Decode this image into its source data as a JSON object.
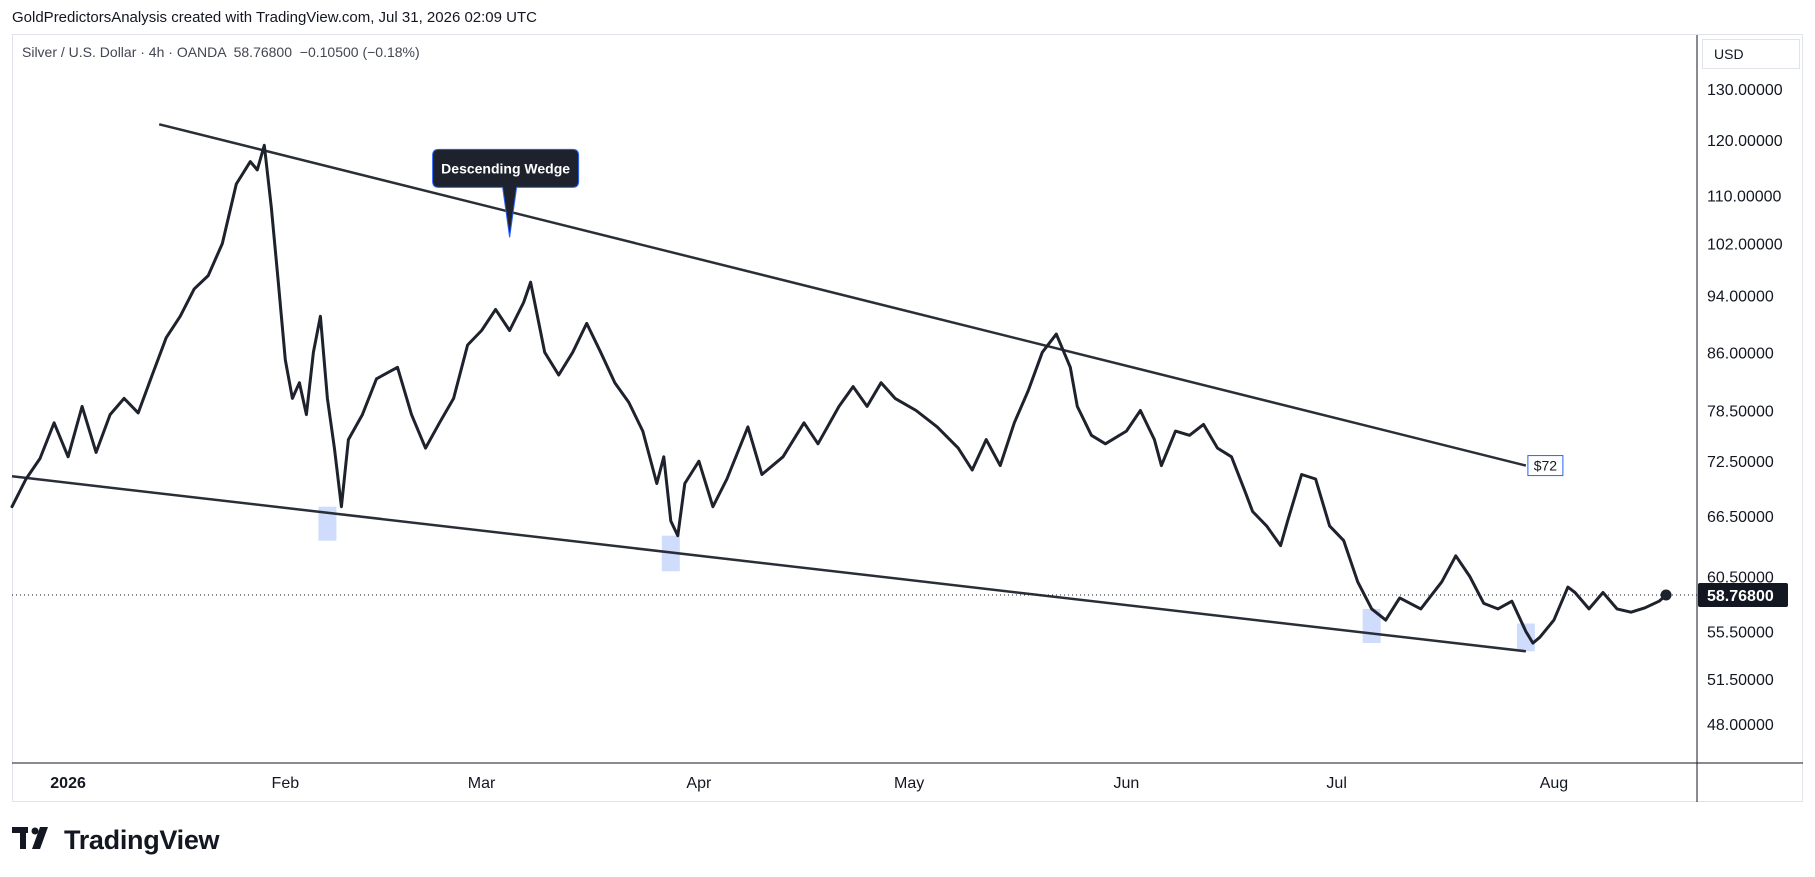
{
  "header": {
    "attribution": "GoldPredictorsAnalysis created with TradingView.com, Jul 31, 2026 02:09 UTC"
  },
  "legend": {
    "symbol": "Silver / U.S. Dollar · 4h · OANDA",
    "last": "58.76800",
    "change": "−0.10500 (−0.18%)"
  },
  "currency_button": "USD",
  "brand": {
    "name": "TradingView",
    "logo": "tradingview-logo-icon"
  },
  "colors": {
    "line": "#1e222d",
    "wedge": "#2a2e39",
    "highlight": "#cfdcfb",
    "callout_bg": "#1e222d",
    "callout_border": "#2962ff",
    "price_tag_bg": "#131722",
    "target_border": "#2962ff"
  },
  "chart_data": {
    "type": "line",
    "title": "Silver / U.S. Dollar · 4h · OANDA",
    "y_scale": "log",
    "ylim": [
      42,
      138
    ],
    "y_ticks": [
      {
        "value": 130,
        "label": "130.00000"
      },
      {
        "value": 120,
        "label": "120.00000"
      },
      {
        "value": 110,
        "label": "110.00000"
      },
      {
        "value": 102,
        "label": "102.00000"
      },
      {
        "value": 94,
        "label": "94.00000"
      },
      {
        "value": 86,
        "label": "86.00000"
      },
      {
        "value": 78.5,
        "label": "78.50000"
      },
      {
        "value": 72.5,
        "label": "72.50000"
      },
      {
        "value": 66.5,
        "label": "66.50000"
      },
      {
        "value": 60.5,
        "label": "60.50000"
      },
      {
        "value": 55.5,
        "label": "55.50000"
      },
      {
        "value": 51.5,
        "label": "51.50000"
      },
      {
        "value": 48,
        "label": "48.00000"
      }
    ],
    "x_range": [
      "2025-12-24",
      "2026-08-09"
    ],
    "x_ticks": [
      {
        "date": "2026-01-01",
        "label": "2026",
        "bold": true
      },
      {
        "date": "2026-02-01",
        "label": "Feb"
      },
      {
        "date": "2026-03-01",
        "label": "Mar"
      },
      {
        "date": "2026-04-01",
        "label": "Apr"
      },
      {
        "date": "2026-05-01",
        "label": "May"
      },
      {
        "date": "2026-06-01",
        "label": "Jun"
      },
      {
        "date": "2026-07-01",
        "label": "Jul"
      },
      {
        "date": "2026-08-01",
        "label": "Aug"
      }
    ],
    "current_price": {
      "value": 58.768,
      "label": "58.76800"
    },
    "series": [
      {
        "points": [
          [
            "2025-12-24",
            67.5
          ],
          [
            "2025-12-26",
            70.5
          ],
          [
            "2025-12-28",
            72.8
          ],
          [
            "2025-12-30",
            77.0
          ],
          [
            "2026-01-01",
            73.0
          ],
          [
            "2026-01-03",
            79.0
          ],
          [
            "2026-01-05",
            73.5
          ],
          [
            "2026-01-07",
            78.0
          ],
          [
            "2026-01-09",
            80.0
          ],
          [
            "2026-01-11",
            78.2
          ],
          [
            "2026-01-13",
            83.0
          ],
          [
            "2026-01-15",
            88.0
          ],
          [
            "2026-01-17",
            91.0
          ],
          [
            "2026-01-19",
            95.0
          ],
          [
            "2026-01-21",
            97.0
          ],
          [
            "2026-01-23",
            102.0
          ],
          [
            "2026-01-25",
            112.0
          ],
          [
            "2026-01-27",
            116.0
          ],
          [
            "2026-01-28",
            114.5
          ],
          [
            "2026-01-29",
            119.0
          ],
          [
            "2026-01-30",
            108.0
          ],
          [
            "2026-01-31",
            96.0
          ],
          [
            "2026-02-01",
            85.0
          ],
          [
            "2026-02-02",
            80.0
          ],
          [
            "2026-02-03",
            82.0
          ],
          [
            "2026-02-04",
            78.0
          ],
          [
            "2026-02-05",
            86.0
          ],
          [
            "2026-02-06",
            91.0
          ],
          [
            "2026-02-07",
            80.0
          ],
          [
            "2026-02-08",
            74.0
          ],
          [
            "2026-02-09",
            67.5
          ],
          [
            "2026-02-10",
            75.0
          ],
          [
            "2026-02-12",
            78.0
          ],
          [
            "2026-02-14",
            82.5
          ],
          [
            "2026-02-17",
            84.0
          ],
          [
            "2026-02-19",
            78.0
          ],
          [
            "2026-02-21",
            74.0
          ],
          [
            "2026-02-23",
            77.0
          ],
          [
            "2026-02-25",
            80.0
          ],
          [
            "2026-02-27",
            87.0
          ],
          [
            "2026-03-01",
            89.0
          ],
          [
            "2026-03-03",
            92.0
          ],
          [
            "2026-03-05",
            89.0
          ],
          [
            "2026-03-07",
            93.0
          ],
          [
            "2026-03-08",
            96.0
          ],
          [
            "2026-03-10",
            86.0
          ],
          [
            "2026-03-12",
            83.0
          ],
          [
            "2026-03-14",
            86.0
          ],
          [
            "2026-03-16",
            90.0
          ],
          [
            "2026-03-18",
            86.0
          ],
          [
            "2026-03-20",
            82.0
          ],
          [
            "2026-03-22",
            79.5
          ],
          [
            "2026-03-24",
            76.0
          ],
          [
            "2026-03-26",
            70.0
          ],
          [
            "2026-03-27",
            73.0
          ],
          [
            "2026-03-28",
            66.0
          ],
          [
            "2026-03-29",
            64.5
          ],
          [
            "2026-03-30",
            70.0
          ],
          [
            "2026-04-01",
            72.5
          ],
          [
            "2026-04-03",
            67.5
          ],
          [
            "2026-04-05",
            70.5
          ],
          [
            "2026-04-08",
            76.5
          ],
          [
            "2026-04-10",
            71.0
          ],
          [
            "2026-04-13",
            73.0
          ],
          [
            "2026-04-16",
            77.0
          ],
          [
            "2026-04-18",
            74.5
          ],
          [
            "2026-04-21",
            79.0
          ],
          [
            "2026-04-23",
            81.5
          ],
          [
            "2026-04-25",
            79.0
          ],
          [
            "2026-04-27",
            82.0
          ],
          [
            "2026-04-29",
            80.0
          ],
          [
            "2026-05-02",
            78.5
          ],
          [
            "2026-05-05",
            76.5
          ],
          [
            "2026-05-08",
            74.0
          ],
          [
            "2026-05-10",
            71.5
          ],
          [
            "2026-05-12",
            75.0
          ],
          [
            "2026-05-14",
            72.0
          ],
          [
            "2026-05-16",
            77.0
          ],
          [
            "2026-05-18",
            81.0
          ],
          [
            "2026-05-20",
            86.0
          ],
          [
            "2026-05-22",
            88.5
          ],
          [
            "2026-05-24",
            84.0
          ],
          [
            "2026-05-25",
            79.0
          ],
          [
            "2026-05-27",
            75.5
          ],
          [
            "2026-05-29",
            74.5
          ],
          [
            "2026-06-01",
            76.0
          ],
          [
            "2026-06-03",
            78.5
          ],
          [
            "2026-06-05",
            75.0
          ],
          [
            "2026-06-06",
            72.0
          ],
          [
            "2026-06-08",
            76.0
          ],
          [
            "2026-06-10",
            75.5
          ],
          [
            "2026-06-12",
            76.8
          ],
          [
            "2026-06-14",
            74.0
          ],
          [
            "2026-06-16",
            73.0
          ],
          [
            "2026-06-18",
            69.0
          ],
          [
            "2026-06-19",
            67.0
          ],
          [
            "2026-06-21",
            65.5
          ],
          [
            "2026-06-23",
            63.5
          ],
          [
            "2026-06-24",
            66.0
          ],
          [
            "2026-06-26",
            71.0
          ],
          [
            "2026-06-28",
            70.5
          ],
          [
            "2026-06-30",
            65.5
          ],
          [
            "2026-07-02",
            64.0
          ],
          [
            "2026-07-04",
            60.0
          ],
          [
            "2026-07-06",
            57.5
          ],
          [
            "2026-07-08",
            56.5
          ],
          [
            "2026-07-10",
            58.5
          ],
          [
            "2026-07-13",
            57.5
          ],
          [
            "2026-07-16",
            60.0
          ],
          [
            "2026-07-18",
            62.5
          ],
          [
            "2026-07-20",
            60.5
          ],
          [
            "2026-07-22",
            58.0
          ],
          [
            "2026-07-24",
            57.5
          ],
          [
            "2026-07-26",
            58.2
          ],
          [
            "2026-07-28",
            55.5
          ],
          [
            "2026-07-29",
            54.5
          ],
          [
            "2026-07-30",
            55.0
          ],
          [
            "2026-08-01",
            56.5
          ],
          [
            "2026-08-03",
            59.5
          ],
          [
            "2026-08-04",
            59.0
          ],
          [
            "2026-08-06",
            57.5
          ],
          [
            "2026-08-08",
            59.0
          ],
          [
            "2026-08-10",
            57.5
          ],
          [
            "2026-08-12",
            57.2
          ],
          [
            "2026-08-14",
            57.6
          ],
          [
            "2026-08-16",
            58.2
          ],
          [
            "2026-08-17",
            58.768
          ]
        ]
      }
    ],
    "annotations": [
      {
        "type": "trendline",
        "name": "upper-wedge-line",
        "from": [
          "2026-01-14",
          123.0
        ],
        "to": [
          "2026-07-28",
          72.0
        ]
      },
      {
        "type": "trendline",
        "name": "lower-wedge-line",
        "from": [
          "2025-12-24",
          70.8
        ],
        "to": [
          "2026-07-28",
          53.8
        ]
      },
      {
        "type": "callout",
        "name": "wedge-callout",
        "text": "Descending Wedge",
        "anchor": [
          "2026-03-05",
          103.0
        ]
      },
      {
        "type": "label",
        "name": "target-label",
        "text": "$72",
        "anchor": [
          "2026-07-28",
          72.0
        ]
      },
      {
        "type": "highlight",
        "name": "support-touch-1",
        "date": "2026-02-07",
        "range": [
          64.0,
          67.5
        ]
      },
      {
        "type": "highlight",
        "name": "support-touch-2",
        "date": "2026-03-28",
        "range": [
          61.0,
          64.5
        ]
      },
      {
        "type": "highlight",
        "name": "support-touch-3",
        "date": "2026-07-06",
        "range": [
          54.5,
          57.5
        ]
      },
      {
        "type": "highlight",
        "name": "support-touch-4",
        "date": "2026-07-28",
        "range": [
          53.8,
          56.2
        ]
      }
    ]
  }
}
